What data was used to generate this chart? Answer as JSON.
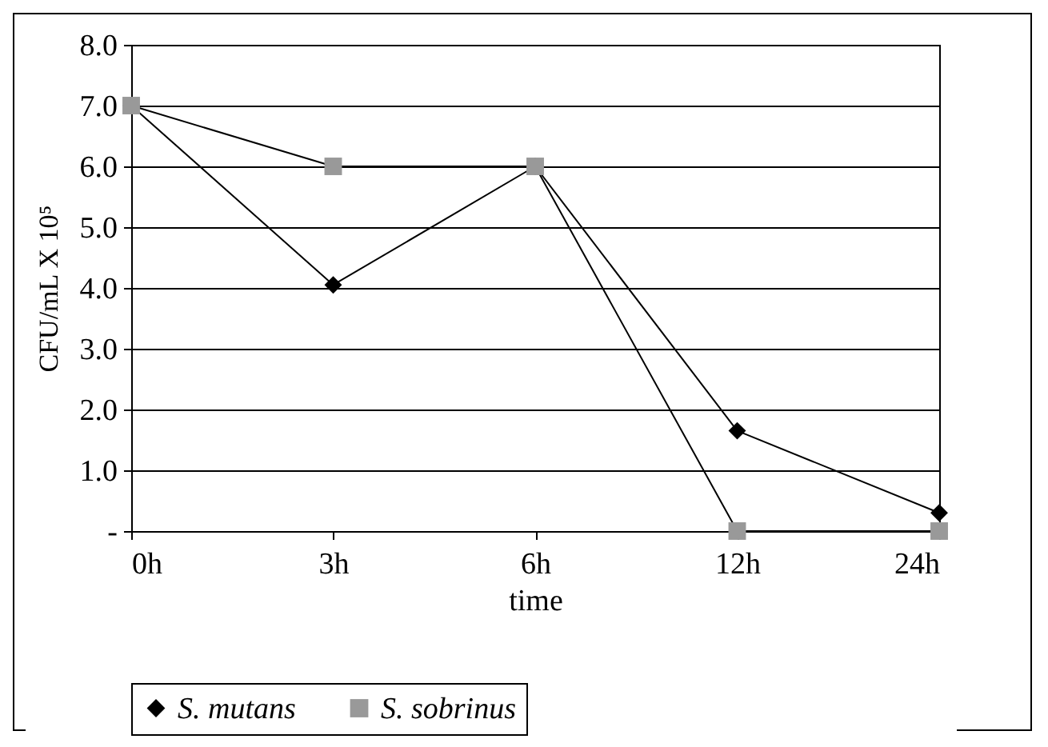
{
  "chart_data": {
    "type": "line",
    "xlabel": "time",
    "ylabel": "CFU/mL X 10⁵",
    "categories": [
      "0h",
      "3h",
      "6h",
      "12h",
      "24h"
    ],
    "series": [
      {
        "name": "S. mutans",
        "color": "#000000",
        "marker": "diamond",
        "values": [
          7.0,
          4.05,
          6.0,
          1.65,
          0.3
        ]
      },
      {
        "name": "S. sobrinus",
        "color": "#999999",
        "marker": "square",
        "values": [
          7.0,
          6.0,
          6.0,
          0,
          0
        ]
      }
    ],
    "ylim": [
      0,
      8
    ],
    "yticks": [
      {
        "value": 0,
        "label": "-"
      },
      {
        "value": 1,
        "label": "1.0"
      },
      {
        "value": 2,
        "label": "2.0"
      },
      {
        "value": 3,
        "label": "3.0"
      },
      {
        "value": 4,
        "label": "4.0"
      },
      {
        "value": 5,
        "label": "5.0"
      },
      {
        "value": 6,
        "label": "6.0"
      },
      {
        "value": 7,
        "label": "7.0"
      },
      {
        "value": 8,
        "label": "8.0"
      }
    ],
    "grid": "y",
    "legend": "bottom",
    "line_style": "solid"
  }
}
